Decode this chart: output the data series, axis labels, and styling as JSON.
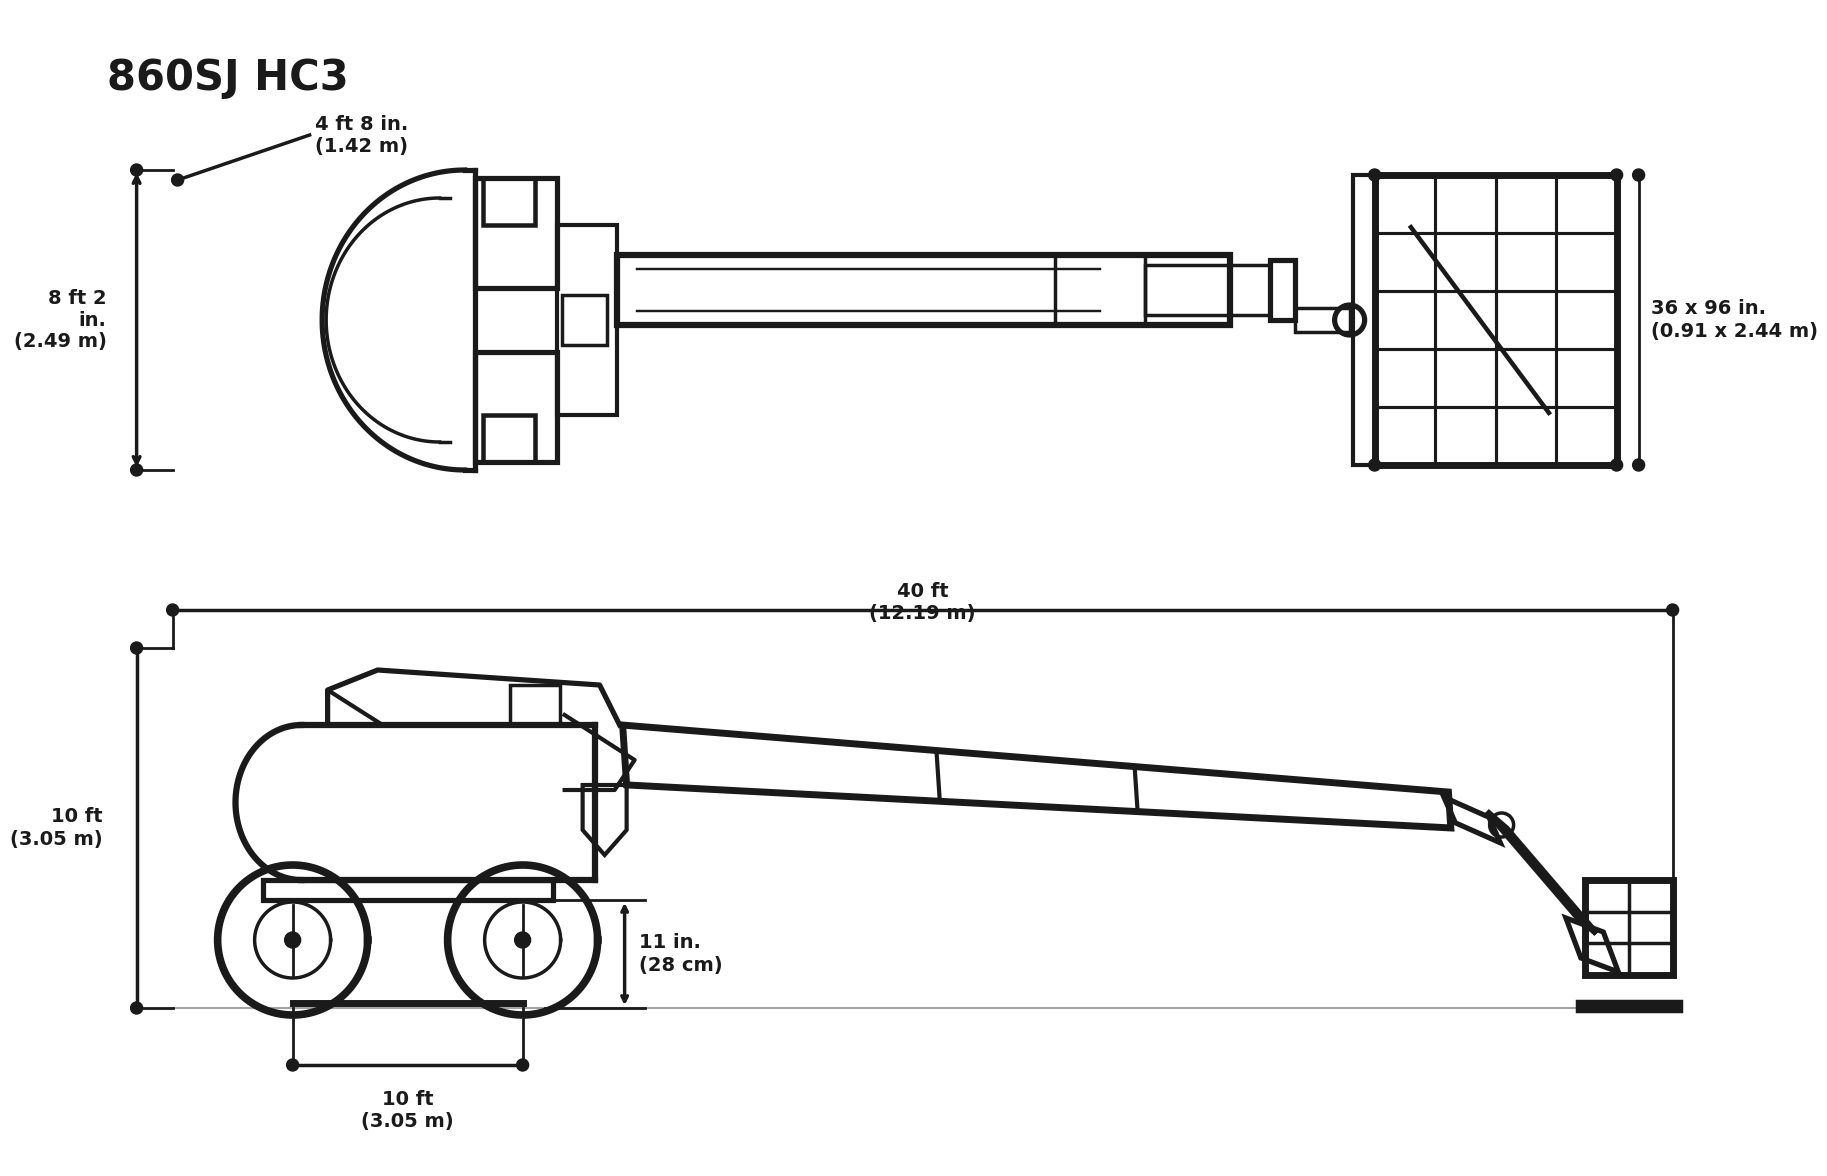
{
  "title": "860SJ HC3",
  "bg_color": "#ffffff",
  "line_color": "#1a1a1a",
  "text_color": "#1a1a1a",
  "top_view": {
    "dim_width_label": "4 ft 8 in.\n(1.42 m)",
    "dim_height_label": "8 ft 2\nin.\n(2.49 m)",
    "dim_basket_label": "36 x 96 in.\n(0.91 x 2.44 m)"
  },
  "side_view": {
    "dim_length_label": "40 ft\n(12.19 m)",
    "dim_height_label": "10 ft\n(3.05 m)",
    "dim_wheelbase_label": "10 ft\n(3.05 m)",
    "dim_clearance_label": "11 in.\n(28 cm)"
  },
  "title_fontsize": 30,
  "label_fontsize": 14,
  "lw": 2.5
}
